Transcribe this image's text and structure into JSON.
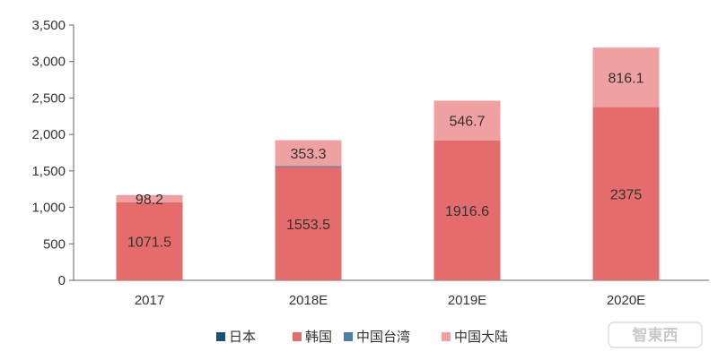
{
  "chart_data": {
    "type": "bar",
    "stacked": true,
    "categories": [
      "2017",
      "2018E",
      "2019E",
      "2020E"
    ],
    "series": [
      {
        "name": "日本",
        "color": "#1f4e79",
        "values": [
          0,
          0,
          0,
          0
        ]
      },
      {
        "name": "韩国",
        "color": "#e46c6c",
        "values": [
          1071.5,
          1553.5,
          1916.6,
          2375
        ]
      },
      {
        "name": "中国台湾",
        "color": "#4a7fa8",
        "values": [
          0,
          15,
          0,
          0
        ]
      },
      {
        "name": "中国大陆",
        "color": "#efa0a0",
        "values": [
          98.2,
          353.3,
          546.7,
          816.1
        ]
      }
    ],
    "data_labels": [
      {
        "category": "2017",
        "series": "韩国",
        "text": "1071.5"
      },
      {
        "category": "2017",
        "series": "中国大陆",
        "text": "98.2"
      },
      {
        "category": "2018E",
        "series": "韩国",
        "text": "1553.5"
      },
      {
        "category": "2018E",
        "series": "中国大陆",
        "text": "353.3"
      },
      {
        "category": "2019E",
        "series": "韩国",
        "text": "1916.6"
      },
      {
        "category": "2019E",
        "series": "中国大陆",
        "text": "546.7"
      },
      {
        "category": "2020E",
        "series": "韩国",
        "text": "2375"
      },
      {
        "category": "2020E",
        "series": "中国大陆",
        "text": "816.1"
      }
    ],
    "y_ticks": [
      "0",
      "500",
      "1,000",
      "1,500",
      "2,000",
      "2,500",
      "3,000",
      "3,500"
    ],
    "ylim": [
      0,
      3500
    ],
    "grid": false,
    "legend_position": "bottom"
  },
  "watermark": {
    "text": "智東西"
  }
}
